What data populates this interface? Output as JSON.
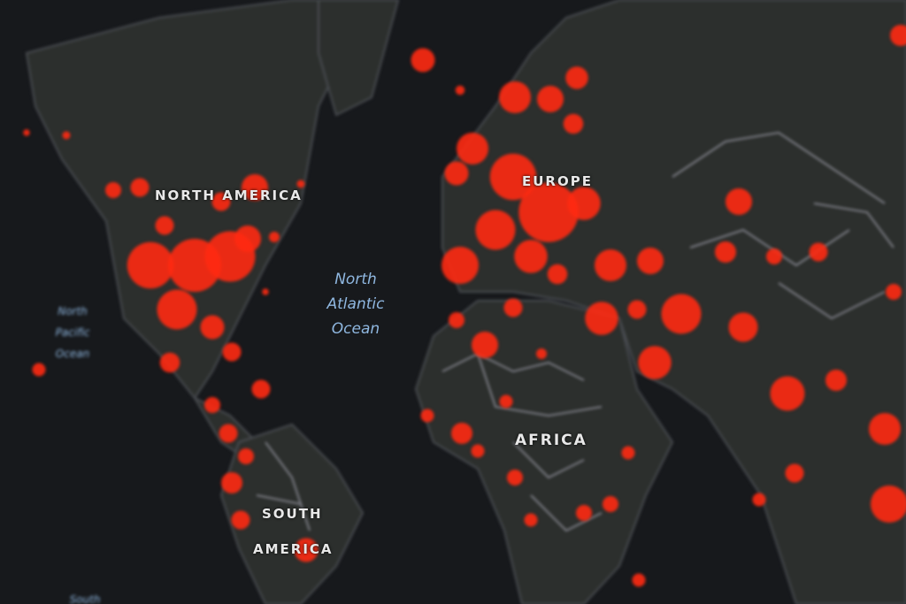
{
  "map": {
    "colors": {
      "ocean": "#17191c",
      "land": "#2c2f2d",
      "borders": "#8a8a95",
      "hotspot": "#ff2a12"
    },
    "labels": {
      "north_america": "NORTH AMERICA",
      "south_america_1": "SOUTH",
      "south_america_2": "AMERICA",
      "europe": "EUROPE",
      "africa": "AFRICA"
    },
    "oceans": {
      "north_atlantic": [
        "North",
        "Atlantic",
        "Ocean"
      ],
      "north_pacific": [
        "North",
        "Pacific",
        "Ocean"
      ],
      "south_partial": "South"
    }
  }
}
